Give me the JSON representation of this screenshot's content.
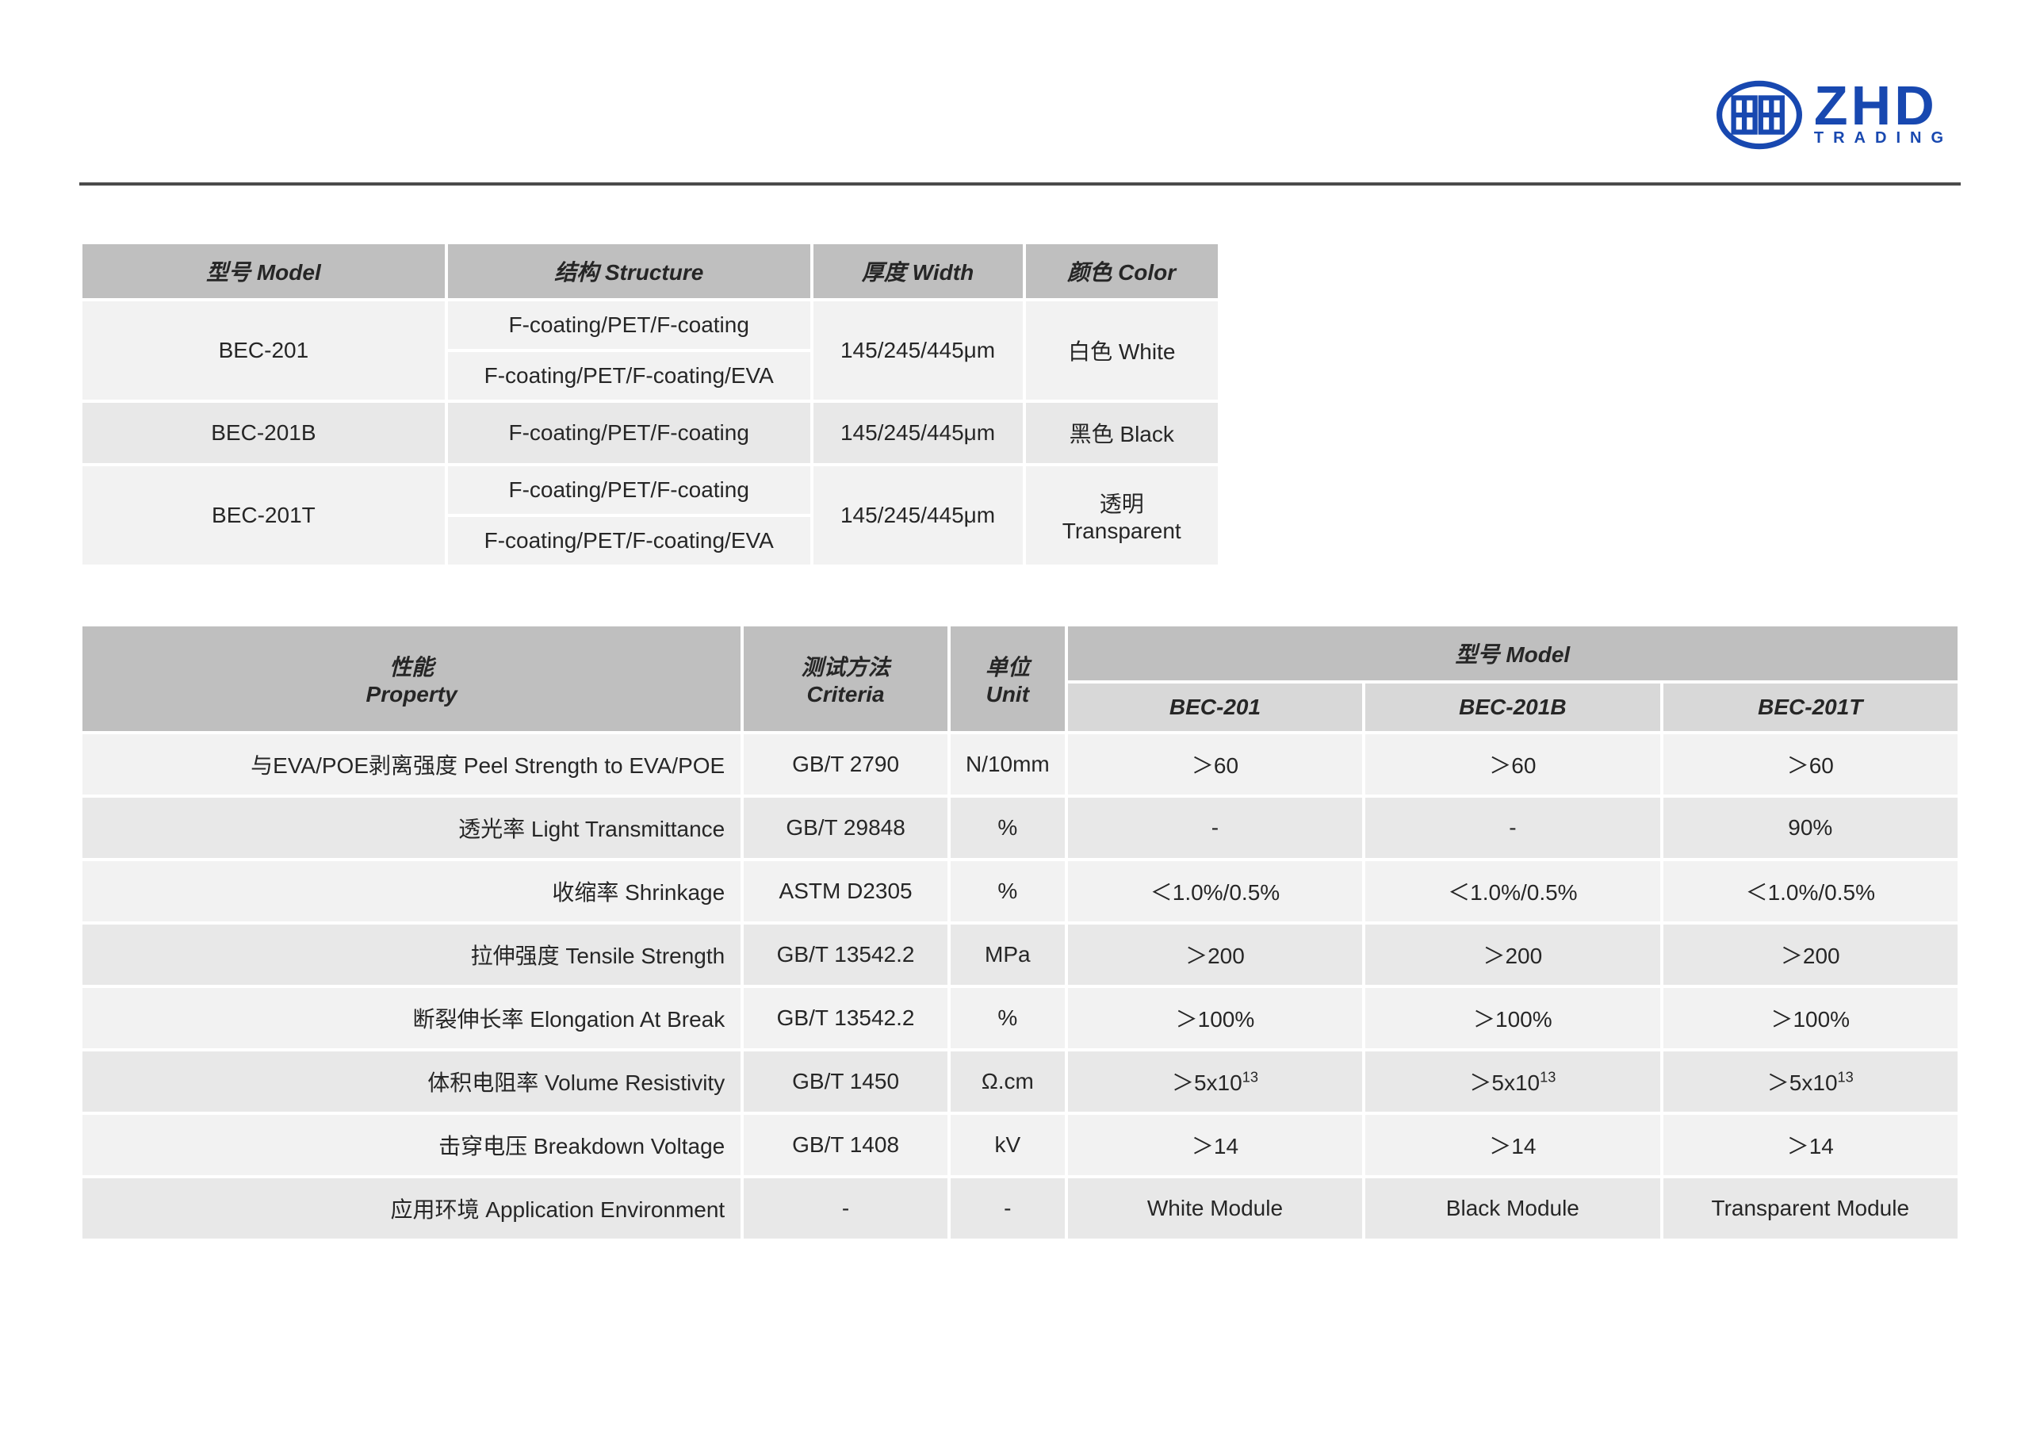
{
  "logo": {
    "brand": "ZHD",
    "sub": "TRADING",
    "color": "#1848b0"
  },
  "table1": {
    "headers": {
      "model": "型号 Model",
      "structure": "结构 Structure",
      "width": "厚度 Width",
      "color": "颜色 Color"
    },
    "rows": [
      {
        "model": "BEC-201",
        "structures": [
          "F-coating/PET/F-coating",
          "F-coating/PET/F-coating/EVA"
        ],
        "width": "145/245/445μm",
        "color": "白色 White"
      },
      {
        "model": "BEC-201B",
        "structures": [
          "F-coating/PET/F-coating"
        ],
        "width": "145/245/445μm",
        "color": "黑色 Black"
      },
      {
        "model": "BEC-201T",
        "structures": [
          "F-coating/PET/F-coating",
          "F-coating/PET/F-coating/EVA"
        ],
        "width": "145/245/445μm",
        "color": "透明 Transparent"
      }
    ]
  },
  "table2": {
    "headers": {
      "property_cn": "性能",
      "property_en": "Property",
      "criteria_cn": "测试方法",
      "criteria_en": "Criteria",
      "unit_cn": "单位",
      "unit_en": "Unit",
      "model": "型号 Model",
      "m1": "BEC-201",
      "m2": "BEC-201B",
      "m3": "BEC-201T"
    },
    "rows": [
      {
        "prop": "与EVA/POE剥离强度 Peel Strength to EVA/POE",
        "crit": "GB/T 2790",
        "unit": "N/10mm",
        "v1": "＞60",
        "v2": "＞60",
        "v3": "＞60"
      },
      {
        "prop": "透光率 Light Transmittance",
        "crit": "GB/T 29848",
        "unit": "%",
        "v1": "-",
        "v2": "-",
        "v3": "90%"
      },
      {
        "prop": "收缩率 Shrinkage",
        "crit": "ASTM D2305",
        "unit": "%",
        "v1": "＜1.0%/0.5%",
        "v2": "＜1.0%/0.5%",
        "v3": "＜1.0%/0.5%"
      },
      {
        "prop": "拉伸强度 Tensile Strength",
        "crit": "GB/T 13542.2",
        "unit": "MPa",
        "v1": "＞200",
        "v2": "＞200",
        "v3": "＞200"
      },
      {
        "prop": "断裂伸长率 Elongation At Break",
        "crit": "GB/T 13542.2",
        "unit": "%",
        "v1": "＞100%",
        "v2": "＞100%",
        "v3": "＞100%"
      },
      {
        "prop": "体积电阻率 Volume Resistivity",
        "crit": "GB/T 1450",
        "unit": "Ω.cm",
        "v1": "＞5x10<sup>13</sup>",
        "v2": "＞5x10<sup>13</sup>",
        "v3": "＞5x10<sup>13</sup>",
        "html": true
      },
      {
        "prop": "击穿电压 Breakdown Voltage",
        "crit": "GB/T 1408",
        "unit": "kV",
        "v1": "＞14",
        "v2": "＞14",
        "v3": "＞14"
      },
      {
        "prop": "应用环境 Application Environment",
        "crit": "-",
        "unit": "-",
        "v1": "White Module",
        "v2": "Black Module",
        "v3": "Transparent Module"
      }
    ]
  },
  "styling": {
    "header_bg": "#bfbfbf",
    "subheader_bg": "#d8d8d8",
    "row_odd_bg": "#f2f2f2",
    "row_even_bg": "#e8e8e8",
    "border_color": "#ffffff",
    "text_color": "#262626",
    "hr_color": "#4b4b4b",
    "font_size_pt": 21,
    "header_italic": true,
    "header_bold": true
  }
}
